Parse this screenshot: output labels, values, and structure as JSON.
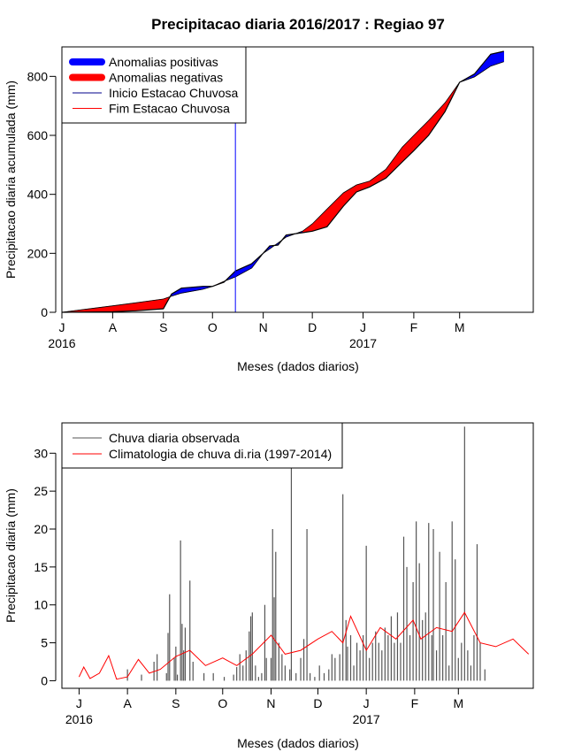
{
  "chart_data": [
    {
      "type": "area",
      "title": "Precipitacao diaria 2016/2017 : Regiao 97",
      "xlabel": "Meses (dados diarios)",
      "ylabel": "Precipitacao diaria acumulada (mm)",
      "x_axis": {
        "range": [
          "2016-07-01",
          "2017-04-15"
        ],
        "month_ticks": [
          {
            "date": "2016-07-01",
            "label": "J"
          },
          {
            "date": "2016-08-01",
            "label": "A"
          },
          {
            "date": "2016-09-01",
            "label": "S"
          },
          {
            "date": "2016-10-01",
            "label": "O"
          },
          {
            "date": "2016-11-01",
            "label": "N"
          },
          {
            "date": "2016-12-01",
            "label": "D"
          },
          {
            "date": "2017-01-01",
            "label": "J"
          },
          {
            "date": "2017-02-01",
            "label": "F"
          },
          {
            "date": "2017-03-01",
            "label": "M"
          }
        ],
        "year_labels": [
          {
            "date": "2016-07-01",
            "label": "2016"
          },
          {
            "date": "2017-01-01",
            "label": "2017"
          }
        ]
      },
      "y_axis": {
        "range": [
          0,
          900
        ],
        "ticks": [
          0,
          200,
          400,
          600,
          800
        ]
      },
      "legend": {
        "position": "top-left",
        "entries": [
          {
            "label": "Anomalias positivas",
            "color": "#0000ff",
            "style": "thick"
          },
          {
            "label": "Anomalias negativas",
            "color": "#ff0000",
            "style": "thick"
          },
          {
            "label": "Inicio Estacao Chuvosa",
            "color": "#00008b",
            "style": "thin"
          },
          {
            "label": "Fim Estacao Chuvosa",
            "color": "#ff0000",
            "style": "thin"
          }
        ]
      },
      "season_start_line": {
        "date": "2016-10-15",
        "color": "#0000ff"
      },
      "series": [
        {
          "name": "observed_cumulative",
          "points": [
            [
              "2016-07-01",
              0
            ],
            [
              "2016-07-15",
              1
            ],
            [
              "2016-08-01",
              2
            ],
            [
              "2016-08-15",
              5
            ],
            [
              "2016-09-01",
              12
            ],
            [
              "2016-09-06",
              62
            ],
            [
              "2016-09-12",
              82
            ],
            [
              "2016-09-25",
              88
            ],
            [
              "2016-10-01",
              88
            ],
            [
              "2016-10-08",
              102
            ],
            [
              "2016-10-15",
              140
            ],
            [
              "2016-10-25",
              165
            ],
            [
              "2016-11-01",
              200
            ],
            [
              "2016-11-05",
              225
            ],
            [
              "2016-11-10",
              228
            ],
            [
              "2016-11-15",
              262
            ],
            [
              "2016-11-25",
              270
            ],
            [
              "2016-12-01",
              275
            ],
            [
              "2016-12-10",
              290
            ],
            [
              "2016-12-20",
              360
            ],
            [
              "2016-12-28",
              408
            ],
            [
              "2017-01-05",
              425
            ],
            [
              "2017-01-15",
              455
            ],
            [
              "2017-01-25",
              510
            ],
            [
              "2017-02-01",
              548
            ],
            [
              "2017-02-10",
              600
            ],
            [
              "2017-02-20",
              680
            ],
            [
              "2017-03-01",
              780
            ],
            [
              "2017-03-10",
              808
            ],
            [
              "2017-03-20",
              875
            ],
            [
              "2017-03-28",
              885
            ]
          ]
        },
        {
          "name": "climatology_cumulative",
          "points": [
            [
              "2016-07-01",
              0
            ],
            [
              "2016-07-15",
              10
            ],
            [
              "2016-08-01",
              22
            ],
            [
              "2016-08-15",
              32
            ],
            [
              "2016-09-01",
              45
            ],
            [
              "2016-09-06",
              55
            ],
            [
              "2016-09-12",
              65
            ],
            [
              "2016-09-25",
              78
            ],
            [
              "2016-10-01",
              88
            ],
            [
              "2016-10-08",
              105
            ],
            [
              "2016-10-15",
              120
            ],
            [
              "2016-10-25",
              150
            ],
            [
              "2016-11-01",
              200
            ],
            [
              "2016-11-05",
              215
            ],
            [
              "2016-11-10",
              235
            ],
            [
              "2016-11-15",
              255
            ],
            [
              "2016-11-25",
              275
            ],
            [
              "2016-12-01",
              300
            ],
            [
              "2016-12-10",
              350
            ],
            [
              "2016-12-20",
              405
            ],
            [
              "2016-12-28",
              432
            ],
            [
              "2017-01-05",
              445
            ],
            [
              "2017-01-15",
              485
            ],
            [
              "2017-01-25",
              560
            ],
            [
              "2017-02-01",
              600
            ],
            [
              "2017-02-10",
              650
            ],
            [
              "2017-02-20",
              710
            ],
            [
              "2017-03-01",
              780
            ],
            [
              "2017-03-10",
              798
            ],
            [
              "2017-03-20",
              835
            ],
            [
              "2017-03-28",
              850
            ]
          ]
        }
      ]
    },
    {
      "type": "bar",
      "xlabel": "Meses (dados diarios)",
      "ylabel": "Precipitacao diaria (mm)",
      "x_axis": {
        "range": [
          "2016-06-20",
          "2017-04-18"
        ],
        "month_ticks": [
          {
            "date": "2016-07-01",
            "label": "J"
          },
          {
            "date": "2016-08-01",
            "label": "A"
          },
          {
            "date": "2016-09-01",
            "label": "S"
          },
          {
            "date": "2016-10-01",
            "label": "O"
          },
          {
            "date": "2016-11-01",
            "label": "N"
          },
          {
            "date": "2016-12-01",
            "label": "D"
          },
          {
            "date": "2017-01-01",
            "label": "J"
          },
          {
            "date": "2017-02-01",
            "label": "F"
          },
          {
            "date": "2017-03-01",
            "label": "M"
          }
        ],
        "year_labels": [
          {
            "date": "2016-07-01",
            "label": "2016"
          },
          {
            "date": "2017-01-01",
            "label": "2017"
          }
        ]
      },
      "y_axis": {
        "range": [
          -1,
          34
        ],
        "ticks": [
          0,
          5,
          10,
          15,
          20,
          25,
          30
        ]
      },
      "legend": {
        "position": "top-left",
        "entries": [
          {
            "label": "Chuva diaria observada",
            "color": "#555555"
          },
          {
            "label": "Climatologia de chuva di.ria (1997-2014)",
            "color": "#ff0000"
          }
        ]
      },
      "series": [
        {
          "name": "observed_daily",
          "color": "#555555",
          "points": [
            [
              "2016-08-01",
              1.5
            ],
            [
              "2016-08-10",
              0.8
            ],
            [
              "2016-08-18",
              2.5
            ],
            [
              "2016-08-20",
              3.5
            ],
            [
              "2016-08-26",
              1.0
            ],
            [
              "2016-08-27",
              6.3
            ],
            [
              "2016-08-28",
              11.4
            ],
            [
              "2016-08-31",
              3.0
            ],
            [
              "2016-09-01",
              4.5
            ],
            [
              "2016-09-02",
              0.8
            ],
            [
              "2016-09-04",
              18.5
            ],
            [
              "2016-09-05",
              7.5
            ],
            [
              "2016-09-06",
              4.0
            ],
            [
              "2016-09-07",
              7.0
            ],
            [
              "2016-09-10",
              13.2
            ],
            [
              "2016-09-12",
              2.5
            ],
            [
              "2016-09-19",
              1.0
            ],
            [
              "2016-09-25",
              1.0
            ],
            [
              "2016-10-02",
              0.5
            ],
            [
              "2016-10-08",
              0.8
            ],
            [
              "2016-10-10",
              1.8
            ],
            [
              "2016-10-12",
              3.5
            ],
            [
              "2016-10-14",
              2.0
            ],
            [
              "2016-10-16",
              4.0
            ],
            [
              "2016-10-18",
              6.5
            ],
            [
              "2016-10-19",
              8.5
            ],
            [
              "2016-10-20",
              9.0
            ],
            [
              "2016-10-22",
              2.0
            ],
            [
              "2016-10-24",
              0.5
            ],
            [
              "2016-10-26",
              1.0
            ],
            [
              "2016-10-28",
              10.0
            ],
            [
              "2016-10-29",
              3.0
            ],
            [
              "2016-11-01",
              3.0
            ],
            [
              "2016-11-02",
              20.0
            ],
            [
              "2016-11-03",
              11.0
            ],
            [
              "2016-11-04",
              17.0
            ],
            [
              "2016-11-06",
              5.0
            ],
            [
              "2016-11-08",
              3.5
            ],
            [
              "2016-11-10",
              2.0
            ],
            [
              "2016-11-13",
              1.5
            ],
            [
              "2016-11-14",
              29.0
            ],
            [
              "2016-11-17",
              1.0
            ],
            [
              "2016-11-20",
              3.0
            ],
            [
              "2016-11-22",
              5.5
            ],
            [
              "2016-11-24",
              20.0
            ],
            [
              "2016-11-26",
              1.0
            ],
            [
              "2016-11-29",
              0.5
            ],
            [
              "2016-12-02",
              2.0
            ],
            [
              "2016-12-05",
              1.0
            ],
            [
              "2016-12-08",
              1.5
            ],
            [
              "2016-12-10",
              3.5
            ],
            [
              "2016-12-12",
              3.0
            ],
            [
              "2016-12-15",
              3.5
            ],
            [
              "2016-12-17",
              24.6
            ],
            [
              "2016-12-19",
              8.0
            ],
            [
              "2016-12-20",
              4.5
            ],
            [
              "2016-12-22",
              6.0
            ],
            [
              "2016-12-24",
              2.0
            ],
            [
              "2016-12-26",
              5.0
            ],
            [
              "2016-12-28",
              4.0
            ],
            [
              "2016-12-30",
              6.0
            ],
            [
              "2017-01-01",
              17.8
            ],
            [
              "2017-01-03",
              3.0
            ],
            [
              "2017-01-05",
              5.0
            ],
            [
              "2017-01-07",
              6.5
            ],
            [
              "2017-01-09",
              5.0
            ],
            [
              "2017-01-11",
              4.0
            ],
            [
              "2017-01-13",
              7.0
            ],
            [
              "2017-01-15",
              6.0
            ],
            [
              "2017-01-17",
              8.5
            ],
            [
              "2017-01-19",
              5.0
            ],
            [
              "2017-01-21",
              9.0
            ],
            [
              "2017-01-23",
              5.0
            ],
            [
              "2017-01-25",
              19.0
            ],
            [
              "2017-01-27",
              15.0
            ],
            [
              "2017-01-29",
              6.0
            ],
            [
              "2017-01-31",
              13.0
            ],
            [
              "2017-02-02",
              21.0
            ],
            [
              "2017-02-04",
              15.5
            ],
            [
              "2017-02-06",
              8.0
            ],
            [
              "2017-02-08",
              9.0
            ],
            [
              "2017-02-10",
              20.8
            ],
            [
              "2017-02-12",
              6.0
            ],
            [
              "2017-02-13",
              20.0
            ],
            [
              "2017-02-15",
              4.0
            ],
            [
              "2017-02-17",
              17.0
            ],
            [
              "2017-02-19",
              6.0
            ],
            [
              "2017-02-21",
              13.0
            ],
            [
              "2017-02-23",
              2.0
            ],
            [
              "2017-02-25",
              21.0
            ],
            [
              "2017-02-27",
              16.0
            ],
            [
              "2017-03-01",
              3.0
            ],
            [
              "2017-03-03",
              5.0
            ],
            [
              "2017-03-05",
              33.5
            ],
            [
              "2017-03-07",
              4.0
            ],
            [
              "2017-03-09",
              2.0
            ],
            [
              "2017-03-11",
              6.0
            ],
            [
              "2017-03-13",
              18.0
            ],
            [
              "2017-03-15",
              5.0
            ],
            [
              "2017-03-18",
              1.5
            ]
          ]
        },
        {
          "name": "climatology_daily",
          "color": "#ff0000",
          "points": [
            [
              "2016-07-01",
              0.5
            ],
            [
              "2016-07-04",
              1.8
            ],
            [
              "2016-07-08",
              0.3
            ],
            [
              "2016-07-14",
              1.0
            ],
            [
              "2016-07-20",
              3.3
            ],
            [
              "2016-07-25",
              0.2
            ],
            [
              "2016-08-01",
              0.5
            ],
            [
              "2016-08-08",
              2.8
            ],
            [
              "2016-08-15",
              1.0
            ],
            [
              "2016-08-22",
              1.5
            ],
            [
              "2016-09-01",
              3.2
            ],
            [
              "2016-09-10",
              4.0
            ],
            [
              "2016-09-20",
              2.0
            ],
            [
              "2016-10-01",
              3.0
            ],
            [
              "2016-10-10",
              2.0
            ],
            [
              "2016-10-20",
              3.5
            ],
            [
              "2016-11-01",
              6.0
            ],
            [
              "2016-11-10",
              3.5
            ],
            [
              "2016-11-20",
              4.0
            ],
            [
              "2016-12-01",
              5.5
            ],
            [
              "2016-12-10",
              6.5
            ],
            [
              "2016-12-17",
              5.0
            ],
            [
              "2016-12-22",
              8.5
            ],
            [
              "2017-01-01",
              4.0
            ],
            [
              "2017-01-10",
              7.0
            ],
            [
              "2017-01-20",
              5.5
            ],
            [
              "2017-01-31",
              8.0
            ],
            [
              "2017-02-05",
              5.5
            ],
            [
              "2017-02-15",
              7.0
            ],
            [
              "2017-02-25",
              6.5
            ],
            [
              "2017-03-05",
              9.0
            ],
            [
              "2017-03-15",
              5.0
            ],
            [
              "2017-03-25",
              4.5
            ],
            [
              "2017-04-05",
              5.5
            ],
            [
              "2017-04-15",
              3.5
            ]
          ]
        }
      ]
    }
  ]
}
